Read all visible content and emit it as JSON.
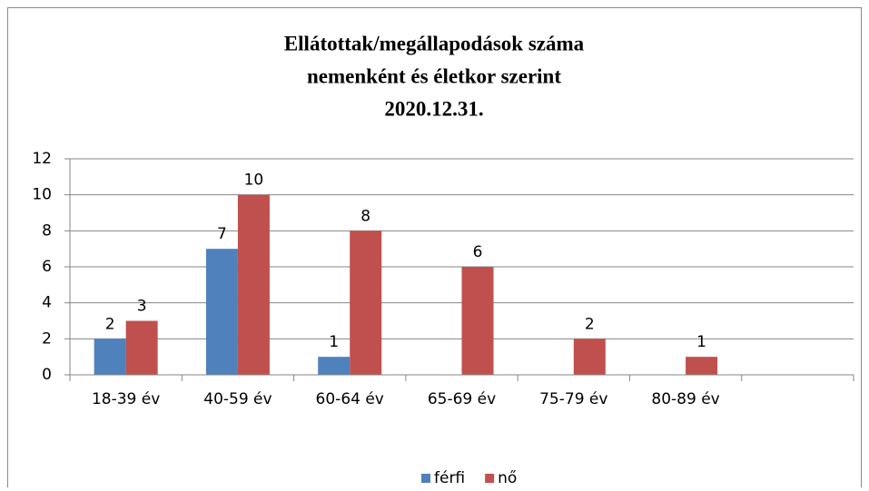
{
  "chart_data": {
    "type": "bar",
    "title": [
      "Ellátottak/megállapodások száma",
      "nemenként és életkor szerint",
      "2020.12.31."
    ],
    "categories": [
      "18-39 év",
      "40-59 év",
      "60-64 év",
      "65-69 év",
      "75-79 év",
      "80-89 év",
      null
    ],
    "series": [
      {
        "name": "férfi",
        "color": "#4f81bd",
        "values": [
          2,
          7,
          1,
          null,
          null,
          null,
          null
        ]
      },
      {
        "name": "nő",
        "color": "#c0504d",
        "values": [
          3,
          10,
          8,
          6,
          2,
          1,
          null
        ]
      }
    ],
    "ylim": [
      0,
      12
    ],
    "yticks": [
      0,
      2,
      4,
      6,
      8,
      10,
      12
    ],
    "grid": true,
    "legend": "bottom"
  }
}
